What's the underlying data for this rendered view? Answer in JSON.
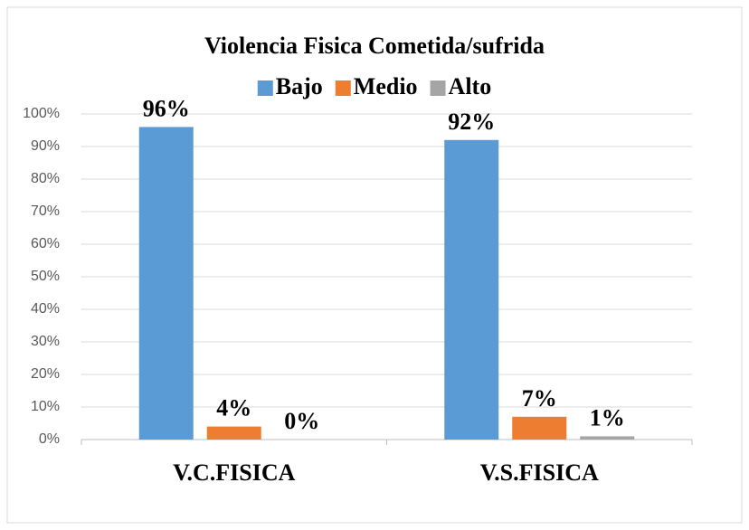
{
  "chart_data": {
    "type": "bar",
    "title": "Violencia Fisica Cometida/sufrida",
    "categories": [
      "V.C.FISICA",
      "V.S.FISICA"
    ],
    "series": [
      {
        "name": "Bajo",
        "color": "#5b9bd5",
        "values": [
          96,
          92
        ],
        "value_labels": [
          "96%",
          "92%"
        ]
      },
      {
        "name": "Medio",
        "color": "#ed7d31",
        "values": [
          4,
          7
        ],
        "value_labels": [
          "4%",
          "7%"
        ]
      },
      {
        "name": "Alto",
        "color": "#a5a5a5",
        "values": [
          0,
          1
        ],
        "value_labels": [
          "0%",
          "1%"
        ]
      }
    ],
    "ylim": [
      0,
      100
    ],
    "yticks": [
      {
        "value": 0,
        "label": "0%"
      },
      {
        "value": 10,
        "label": "10%"
      },
      {
        "value": 20,
        "label": "20%"
      },
      {
        "value": 30,
        "label": "30%"
      },
      {
        "value": 40,
        "label": "40%"
      },
      {
        "value": 50,
        "label": "50%"
      },
      {
        "value": 60,
        "label": "60%"
      },
      {
        "value": 70,
        "label": "70%"
      },
      {
        "value": 80,
        "label": "80%"
      },
      {
        "value": 90,
        "label": "90%"
      },
      {
        "value": 100,
        "label": "100%"
      }
    ],
    "grid": true,
    "legend": "top"
  }
}
